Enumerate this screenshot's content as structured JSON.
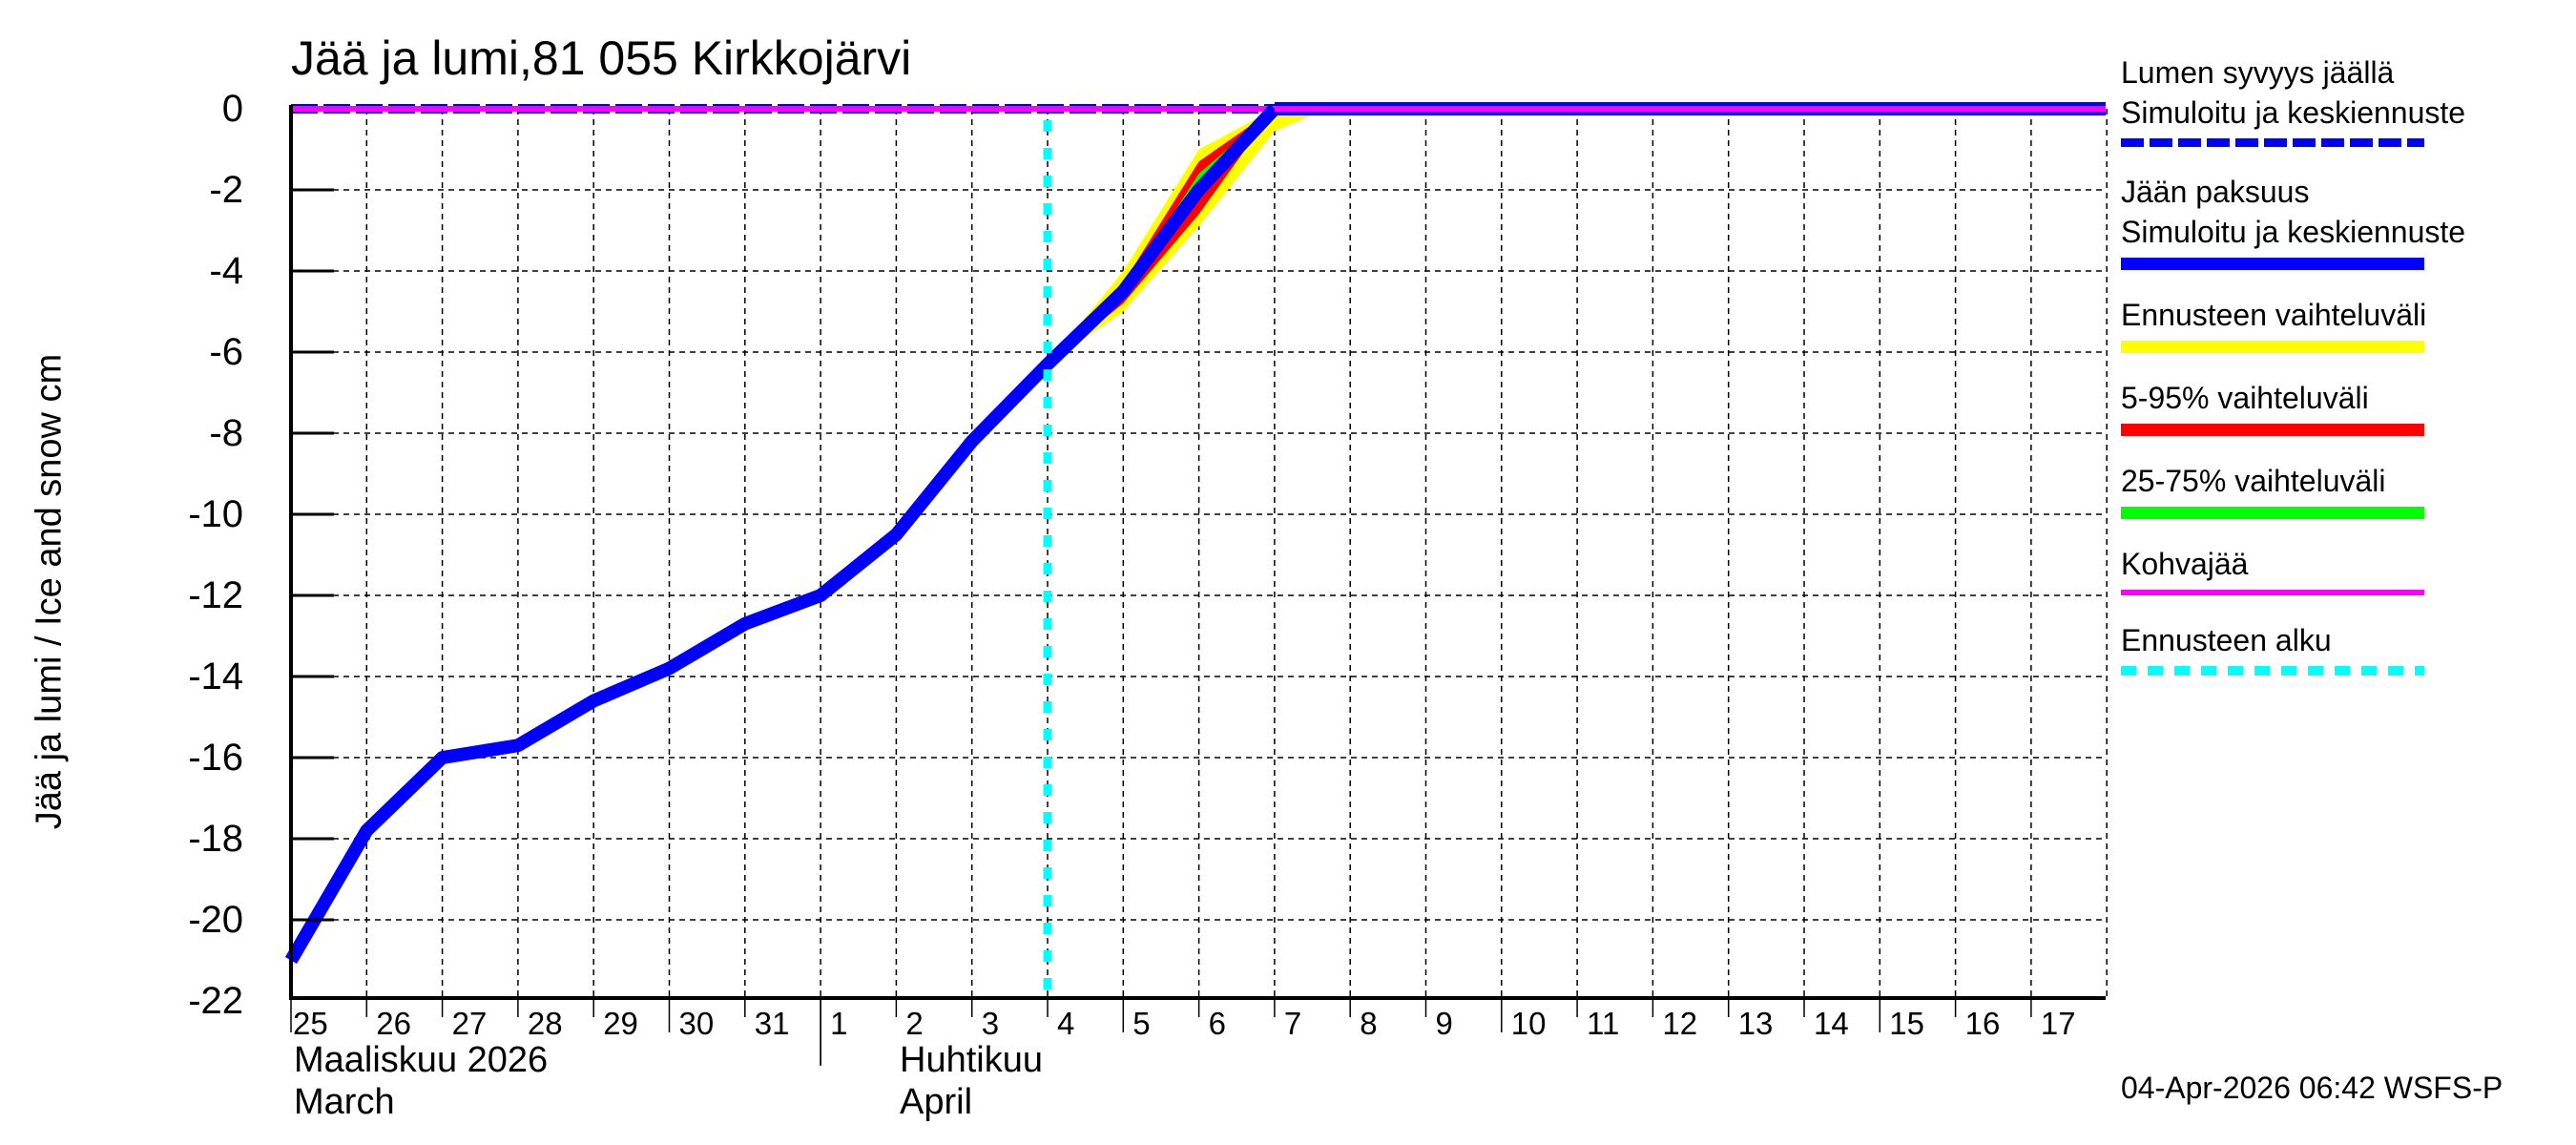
{
  "chart_data": {
    "type": "line",
    "title": "Jää ja lumi,81 055 Kirkkojärvi",
    "ylabel": "Jää ja lumi / Ice and snow    cm",
    "xlabel": "",
    "ylim": [
      -22,
      0
    ],
    "yticks": [
      0,
      -2,
      -4,
      -6,
      -8,
      -10,
      -12,
      -14,
      -16,
      -18,
      -20,
      -22
    ],
    "grid": true,
    "legend_position": "right",
    "x": [
      "25",
      "26",
      "27",
      "28",
      "29",
      "30",
      "31",
      "1",
      "2",
      "3",
      "4",
      "5",
      "6",
      "7",
      "8",
      "9",
      "10",
      "11",
      "12",
      "13",
      "14",
      "15",
      "16",
      "17"
    ],
    "month_labels": [
      {
        "line1": "Maaliskuu 2026",
        "line2": "March",
        "start_index": 0
      },
      {
        "line1": "Huhtikuu",
        "line2": "April",
        "start_index": 8
      }
    ],
    "forecast_start_index": 10,
    "series": [
      {
        "name": "Lumen syvyys jäällä — Simuloitu ja keskiennuste",
        "color": "#0000ff",
        "style": "dashed",
        "values": [
          0,
          0,
          0,
          0,
          0,
          0,
          0,
          0,
          0,
          0,
          0,
          0,
          0,
          0,
          0,
          0,
          0,
          0,
          0,
          0,
          0,
          0,
          0,
          0
        ]
      },
      {
        "name": "Jään paksuus — Simuloitu ja keskiennuste",
        "color": "#0000ff",
        "style": "solid",
        "values": [
          -21.0,
          -17.8,
          -16.0,
          -15.7,
          -14.6,
          -13.8,
          -12.7,
          -12.0,
          -10.5,
          -8.2,
          -6.3,
          -4.5,
          -2.0,
          0,
          0,
          0,
          0,
          0,
          0,
          0,
          0,
          0,
          0,
          0
        ]
      },
      {
        "name": "Ennusteen vaihteluväli",
        "color": "#ffff00",
        "style": "band",
        "band_index": [
          10,
          11,
          12,
          13,
          13.7
        ],
        "upper": [
          -6.3,
          -4.0,
          -1.0,
          0,
          0
        ],
        "lower": [
          -6.3,
          -5.0,
          -2.9,
          -0.55,
          0
        ]
      },
      {
        "name": "5-95% vaihteluväli",
        "color": "#ff0000",
        "style": "band",
        "band_index": [
          10,
          11,
          12,
          13
        ],
        "upper": [
          -6.3,
          -4.3,
          -1.3,
          0
        ],
        "lower": [
          -6.3,
          -4.8,
          -2.6,
          0
        ]
      },
      {
        "name": "25-75% vaihteluväli",
        "color": "#00ff00",
        "style": "band",
        "band_index": [
          10,
          11,
          12,
          13
        ],
        "upper": [
          -6.3,
          -4.5,
          -1.6,
          0
        ],
        "lower": [
          -6.3,
          -4.5,
          -1.9,
          0
        ]
      },
      {
        "name": "Kohvajää",
        "color": "#ff00ff",
        "style": "solid",
        "values": [
          0,
          0,
          0,
          0,
          0,
          0,
          0,
          0,
          0,
          0,
          0,
          0,
          0,
          0,
          0,
          0,
          0,
          0,
          0,
          0,
          0,
          0,
          0,
          0
        ]
      },
      {
        "name": "Ennusteen alku",
        "color": "#00ffff",
        "style": "dotted-vertical",
        "x_index": 10
      }
    ]
  },
  "title": "Jää ja lumi,81 055 Kirkkojärvi",
  "y_axis_label": "Jää ja lumi / Ice and snow    cm",
  "y_ticks": [
    "0",
    "-2",
    "-4",
    "-6",
    "-8",
    "-10",
    "-12",
    "-14",
    "-16",
    "-18",
    "-20",
    "-22"
  ],
  "x_ticks": [
    "25",
    "26",
    "27",
    "28",
    "29",
    "30",
    "31",
    "1",
    "2",
    "3",
    "4",
    "5",
    "6",
    "7",
    "8",
    "9",
    "10",
    "11",
    "12",
    "13",
    "14",
    "15",
    "16",
    "17"
  ],
  "months": {
    "march_fi": "Maaliskuu 2026",
    "march_en": "March",
    "april_fi": "Huhtikuu",
    "april_en": "April"
  },
  "legend": [
    {
      "line1": "Lumen syvyys jäällä",
      "line2": "Simuloitu ja keskiennuste",
      "color": "#0000ff",
      "style": "dashed"
    },
    {
      "line1": "Jään paksuus",
      "line2": "Simuloitu ja keskiennuste",
      "color": "#0000ff",
      "style": "solid"
    },
    {
      "line1": "Ennusteen vaihteluväli",
      "color": "#ffff00",
      "style": "solid"
    },
    {
      "line1": "5-95% vaihteluväli",
      "color": "#ff0000",
      "style": "solid"
    },
    {
      "line1": "25-75% vaihteluväli",
      "color": "#00ff00",
      "style": "solid"
    },
    {
      "line1": "Kohvajää",
      "color": "#ff00ff",
      "style": "thin"
    },
    {
      "line1": "Ennusteen alku",
      "color": "#00ffff",
      "style": "dotted"
    }
  ],
  "footer": "04-Apr-2026 06:42 WSFS-P"
}
